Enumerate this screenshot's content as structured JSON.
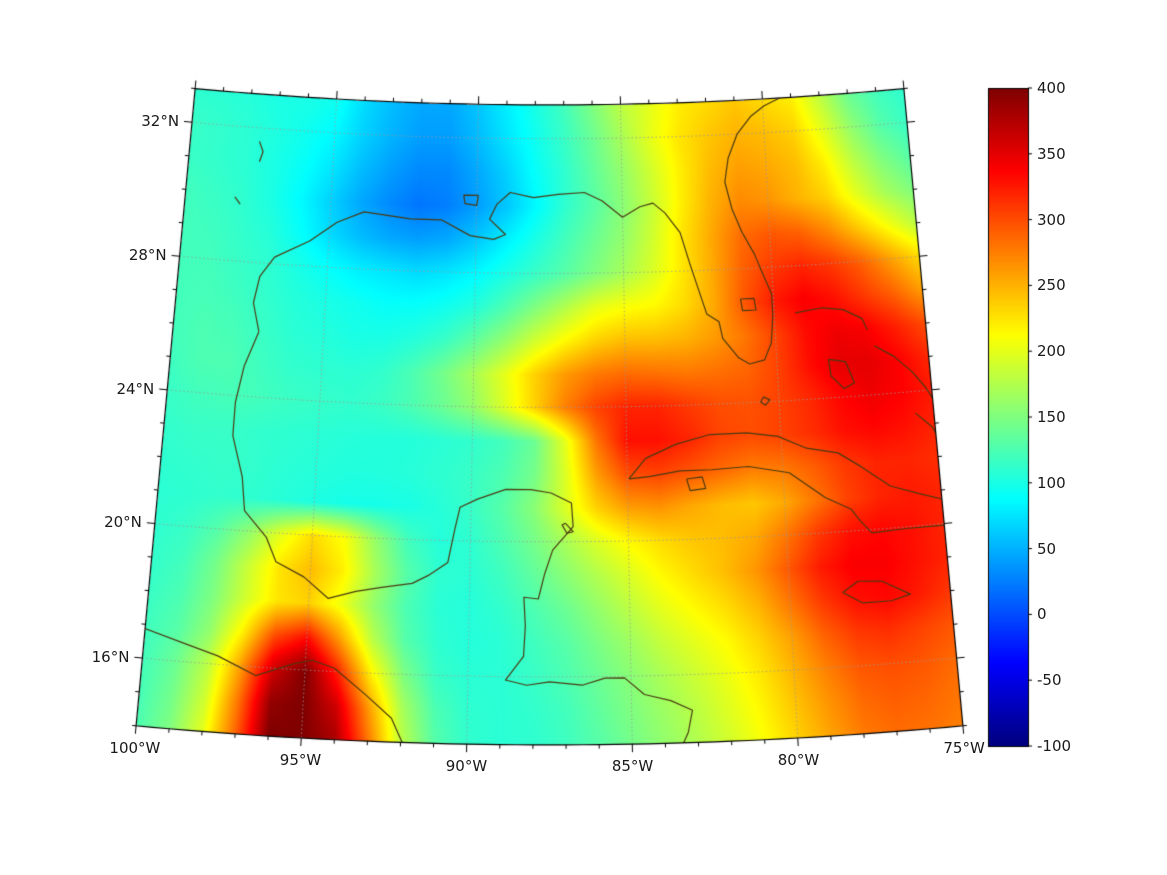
{
  "colors": {
    "background": "#ffffff",
    "coastline": "#4a3a12",
    "boundary": "#000000",
    "grid": "#999999",
    "tick_text": "#1a1a1a"
  },
  "axes": {
    "x_ticks": [
      {
        "lon": -100,
        "label": "100°W"
      },
      {
        "lon": -95,
        "label": "95°W"
      },
      {
        "lon": -90,
        "label": "90°W"
      },
      {
        "lon": -85,
        "label": "85°W"
      },
      {
        "lon": -80,
        "label": "80°W"
      },
      {
        "lon": -75,
        "label": "75°W"
      }
    ],
    "y_ticks": [
      {
        "lat": 32,
        "label": "32°N"
      },
      {
        "lat": 28,
        "label": "28°N"
      },
      {
        "lat": 24,
        "label": "24°N"
      },
      {
        "lat": 20,
        "label": "20°N"
      },
      {
        "lat": 16,
        "label": "16°N"
      }
    ]
  },
  "colorbar": {
    "ticks": [
      {
        "value": 400,
        "label": "400"
      },
      {
        "value": 350,
        "label": "350"
      },
      {
        "value": 300,
        "label": "300"
      },
      {
        "value": 250,
        "label": "250"
      },
      {
        "value": 200,
        "label": "200"
      },
      {
        "value": 150,
        "label": "150"
      },
      {
        "value": 100,
        "label": "100"
      },
      {
        "value": 50,
        "label": "50"
      },
      {
        "value": 0,
        "label": "0"
      },
      {
        "value": -50,
        "label": "-50"
      },
      {
        "value": -100,
        "label": "-100"
      }
    ]
  },
  "chart_data": {
    "type": "heatmap",
    "colormap": "jet",
    "vmin": -100,
    "vmax": 400,
    "lat_gridlines": [
      16,
      20,
      24,
      28,
      32
    ],
    "lon_gridlines": [
      -95,
      -90,
      -85,
      -80
    ],
    "lons": [
      -100,
      -99,
      -98,
      -97,
      -96,
      -95,
      -94,
      -93,
      -92,
      -91,
      -90,
      -89,
      -88,
      -87,
      -86,
      -85,
      -84,
      -83,
      -82,
      -81,
      -80,
      -79,
      -78,
      -77,
      -76,
      -75
    ],
    "lats": [
      33,
      32,
      31,
      30,
      29,
      28,
      27,
      26,
      25,
      24,
      23,
      22,
      21,
      20,
      19,
      18,
      17,
      16,
      15,
      14
    ],
    "values": [
      [
        110,
        108,
        105,
        100,
        100,
        95,
        70,
        55,
        45,
        45,
        60,
        80,
        100,
        120,
        150,
        180,
        200,
        220,
        230,
        240,
        230,
        220,
        180,
        140,
        120,
        110
      ],
      [
        115,
        112,
        108,
        102,
        95,
        85,
        65,
        50,
        40,
        40,
        55,
        75,
        95,
        115,
        140,
        170,
        200,
        225,
        240,
        250,
        245,
        235,
        200,
        160,
        130,
        115
      ],
      [
        115,
        112,
        108,
        100,
        90,
        75,
        55,
        40,
        30,
        30,
        45,
        65,
        90,
        110,
        135,
        160,
        190,
        220,
        245,
        260,
        255,
        245,
        220,
        180,
        150,
        130
      ],
      [
        120,
        115,
        110,
        100,
        85,
        65,
        45,
        30,
        20,
        25,
        40,
        60,
        85,
        110,
        130,
        155,
        185,
        220,
        250,
        270,
        265,
        250,
        235,
        200,
        170,
        150
      ],
      [
        120,
        118,
        112,
        105,
        90,
        70,
        55,
        45,
        40,
        45,
        60,
        80,
        100,
        120,
        140,
        160,
        190,
        225,
        255,
        285,
        295,
        290,
        270,
        240,
        210,
        180
      ],
      [
        120,
        120,
        115,
        110,
        100,
        90,
        80,
        75,
        70,
        75,
        85,
        100,
        115,
        130,
        150,
        170,
        195,
        225,
        255,
        290,
        310,
        320,
        310,
        290,
        260,
        230
      ],
      [
        120,
        122,
        118,
        112,
        105,
        100,
        95,
        90,
        90,
        95,
        105,
        125,
        150,
        175,
        200,
        210,
        215,
        230,
        255,
        295,
        325,
        340,
        330,
        310,
        290,
        260
      ],
      [
        120,
        125,
        122,
        115,
        108,
        105,
        100,
        100,
        105,
        115,
        135,
        160,
        190,
        215,
        235,
        245,
        245,
        250,
        262,
        280,
        305,
        332,
        345,
        340,
        322,
        300
      ],
      [
        118,
        125,
        125,
        118,
        112,
        110,
        108,
        112,
        125,
        145,
        170,
        200,
        235,
        262,
        278,
        285,
        282,
        278,
        282,
        288,
        305,
        330,
        350,
        350,
        338,
        318
      ],
      [
        115,
        120,
        122,
        120,
        116,
        114,
        112,
        116,
        125,
        140,
        160,
        195,
        235,
        275,
        305,
        320,
        320,
        310,
        300,
        298,
        305,
        318,
        335,
        345,
        338,
        325
      ],
      [
        112,
        115,
        115,
        112,
        110,
        108,
        106,
        105,
        105,
        108,
        112,
        120,
        140,
        200,
        280,
        330,
        330,
        320,
        305,
        300,
        305,
        315,
        330,
        335,
        330,
        320
      ],
      [
        110,
        112,
        114,
        112,
        108,
        106,
        104,
        104,
        106,
        110,
        115,
        125,
        145,
        195,
        260,
        300,
        305,
        295,
        285,
        275,
        278,
        292,
        310,
        320,
        320,
        315
      ],
      [
        108,
        110,
        112,
        110,
        106,
        102,
        98,
        98,
        100,
        106,
        115,
        130,
        155,
        195,
        235,
        260,
        265,
        255,
        245,
        240,
        255,
        280,
        305,
        320,
        325,
        320
      ],
      [
        110,
        115,
        130,
        160,
        200,
        230,
        210,
        160,
        120,
        105,
        110,
        125,
        145,
        170,
        195,
        215,
        230,
        240,
        245,
        255,
        280,
        310,
        330,
        335,
        330,
        320
      ],
      [
        112,
        120,
        145,
        185,
        225,
        245,
        220,
        170,
        130,
        110,
        108,
        118,
        135,
        155,
        175,
        195,
        215,
        230,
        245,
        265,
        295,
        325,
        340,
        340,
        330,
        320
      ],
      [
        115,
        125,
        150,
        190,
        225,
        235,
        205,
        160,
        125,
        108,
        105,
        112,
        125,
        140,
        160,
        180,
        200,
        215,
        230,
        250,
        280,
        310,
        330,
        335,
        325,
        310
      ],
      [
        118,
        130,
        160,
        220,
        300,
        330,
        260,
        180,
        130,
        110,
        105,
        108,
        118,
        130,
        148,
        165,
        185,
        200,
        215,
        235,
        260,
        290,
        310,
        315,
        305,
        295
      ],
      [
        120,
        140,
        180,
        260,
        360,
        400,
        320,
        220,
        150,
        115,
        108,
        108,
        115,
        125,
        140,
        155,
        172,
        188,
        205,
        225,
        250,
        275,
        295,
        300,
        295,
        285
      ],
      [
        122,
        145,
        190,
        280,
        390,
        400,
        360,
        260,
        170,
        125,
        110,
        108,
        112,
        120,
        135,
        150,
        165,
        180,
        198,
        218,
        242,
        265,
        285,
        292,
        288,
        280
      ],
      [
        125,
        150,
        200,
        290,
        400,
        400,
        380,
        280,
        180,
        130,
        112,
        108,
        110,
        118,
        130,
        145,
        160,
        175,
        192,
        212,
        235,
        258,
        278,
        285,
        282,
        275
      ]
    ],
    "coastlines": {
      "us_gulf_atlantic": [
        [
          -97.15,
          25.95
        ],
        [
          -97.4,
          26.8
        ],
        [
          -97.25,
          27.6
        ],
        [
          -96.8,
          28.2
        ],
        [
          -95.65,
          28.75
        ],
        [
          -94.75,
          29.35
        ],
        [
          -93.85,
          29.7
        ],
        [
          -92.25,
          29.55
        ],
        [
          -91.2,
          29.55
        ],
        [
          -90.2,
          29.1
        ],
        [
          -89.4,
          29.0
        ],
        [
          -89.0,
          29.15
        ],
        [
          -89.55,
          29.6
        ],
        [
          -89.3,
          30.05
        ],
        [
          -88.85,
          30.4
        ],
        [
          -88.05,
          30.25
        ],
        [
          -87.2,
          30.35
        ],
        [
          -86.3,
          30.4
        ],
        [
          -85.7,
          30.15
        ],
        [
          -85.0,
          29.65
        ],
        [
          -84.4,
          29.95
        ],
        [
          -83.95,
          30.05
        ],
        [
          -83.55,
          29.75
        ],
        [
          -83.05,
          29.15
        ],
        [
          -82.75,
          28.2
        ],
        [
          -82.65,
          27.9
        ],
        [
          -82.25,
          26.7
        ],
        [
          -81.85,
          26.45
        ],
        [
          -81.75,
          25.95
        ],
        [
          -81.25,
          25.35
        ],
        [
          -80.9,
          25.15
        ],
        [
          -80.4,
          25.25
        ],
        [
          -80.15,
          25.75
        ],
        [
          -80.05,
          26.55
        ],
        [
          -80.05,
          27.2
        ],
        [
          -80.35,
          27.9
        ],
        [
          -80.55,
          28.4
        ],
        [
          -80.95,
          29.1
        ],
        [
          -81.25,
          29.8
        ],
        [
          -81.45,
          30.6
        ],
        [
          -81.3,
          31.3
        ],
        [
          -80.95,
          32.0
        ],
        [
          -80.45,
          32.5
        ],
        [
          -79.95,
          32.8
        ],
        [
          -79.25,
          33.05
        ]
      ],
      "mexico_central_america": [
        [
          -97.15,
          25.95
        ],
        [
          -97.55,
          24.9
        ],
        [
          -97.75,
          23.8
        ],
        [
          -97.75,
          22.8
        ],
        [
          -97.35,
          21.6
        ],
        [
          -97.2,
          20.6
        ],
        [
          -96.45,
          19.85
        ],
        [
          -96.1,
          19.15
        ],
        [
          -95.2,
          18.75
        ],
        [
          -94.4,
          18.15
        ],
        [
          -93.55,
          18.4
        ],
        [
          -92.75,
          18.55
        ],
        [
          -91.8,
          18.7
        ],
        [
          -91.3,
          18.95
        ],
        [
          -90.7,
          19.35
        ],
        [
          -90.5,
          20.35
        ],
        [
          -90.35,
          21.0
        ],
        [
          -89.8,
          21.25
        ],
        [
          -88.9,
          21.55
        ],
        [
          -88.1,
          21.55
        ],
        [
          -87.45,
          21.45
        ],
        [
          -86.8,
          21.15
        ],
        [
          -86.75,
          20.45
        ],
        [
          -87.4,
          19.75
        ],
        [
          -87.65,
          19.05
        ],
        [
          -87.85,
          18.3
        ],
        [
          -88.3,
          18.35
        ],
        [
          -88.25,
          17.5
        ],
        [
          -88.3,
          16.6
        ],
        [
          -88.85,
          15.9
        ],
        [
          -88.2,
          15.75
        ],
        [
          -87.5,
          15.85
        ],
        [
          -86.5,
          15.75
        ],
        [
          -85.8,
          15.95
        ],
        [
          -85.2,
          15.95
        ],
        [
          -84.6,
          15.45
        ],
        [
          -83.8,
          15.25
        ],
        [
          -83.15,
          14.95
        ],
        [
          -83.3,
          14.3
        ],
        [
          -83.5,
          13.9
        ]
      ],
      "pacific_coast": [
        [
          -100.3,
          16.95
        ],
        [
          -98.8,
          16.55
        ],
        [
          -97.7,
          16.25
        ],
        [
          -96.5,
          15.75
        ],
        [
          -95.4,
          16.15
        ],
        [
          -94.8,
          16.3
        ],
        [
          -94.1,
          16.1
        ],
        [
          -93.1,
          15.35
        ],
        [
          -92.3,
          14.7
        ],
        [
          -91.9,
          13.9
        ]
      ],
      "cuba": [
        [
          -84.95,
          21.85
        ],
        [
          -84.4,
          22.45
        ],
        [
          -83.4,
          22.85
        ],
        [
          -82.3,
          23.1
        ],
        [
          -81.1,
          23.1
        ],
        [
          -80.1,
          22.95
        ],
        [
          -79.2,
          22.55
        ],
        [
          -78.2,
          22.35
        ],
        [
          -77.5,
          21.9
        ],
        [
          -76.6,
          21.25
        ],
        [
          -75.7,
          20.95
        ],
        [
          -74.9,
          20.7
        ],
        [
          -74.9,
          19.95
        ],
        [
          -76.2,
          19.95
        ],
        [
          -77.3,
          19.9
        ],
        [
          -77.65,
          20.3
        ],
        [
          -77.9,
          20.65
        ],
        [
          -78.7,
          21.05
        ],
        [
          -79.8,
          21.85
        ],
        [
          -81.1,
          22.1
        ],
        [
          -82.3,
          22.05
        ],
        [
          -83.3,
          22.05
        ],
        [
          -84.3,
          21.9
        ],
        [
          -84.95,
          21.85
        ]
      ],
      "isle_of_youth": [
        [
          -83.1,
          21.8
        ],
        [
          -82.6,
          21.85
        ],
        [
          -82.5,
          21.5
        ],
        [
          -83.0,
          21.45
        ],
        [
          -83.1,
          21.8
        ]
      ],
      "jamaica": [
        [
          -78.35,
          18.2
        ],
        [
          -77.85,
          18.5
        ],
        [
          -77.1,
          18.45
        ],
        [
          -76.25,
          18.0
        ],
        [
          -76.85,
          17.85
        ],
        [
          -77.75,
          17.85
        ],
        [
          -78.35,
          18.2
        ]
      ],
      "andros": [
        [
          -78.3,
          25.15
        ],
        [
          -77.75,
          25.05
        ],
        [
          -77.5,
          24.4
        ],
        [
          -77.85,
          24.25
        ],
        [
          -78.25,
          24.65
        ],
        [
          -78.3,
          25.15
        ]
      ],
      "grand_bahama_abaco": [
        [
          -79.3,
          26.6
        ],
        [
          -78.4,
          26.7
        ],
        [
          -77.7,
          26.6
        ],
        [
          -77.1,
          26.3
        ],
        [
          -76.95,
          25.95
        ]
      ],
      "eleuthera_exuma": [
        [
          -76.75,
          25.45
        ],
        [
          -76.15,
          25.1
        ],
        [
          -75.6,
          24.6
        ],
        [
          -75.2,
          24.1
        ],
        [
          -75.0,
          23.75
        ]
      ],
      "long_island_bahamas": [
        [
          -75.6,
          23.35
        ],
        [
          -75.1,
          22.9
        ],
        [
          -74.95,
          22.6
        ]
      ],
      "lake_okeechobee": [
        [
          -81.1,
          27.1
        ],
        [
          -80.65,
          27.1
        ],
        [
          -80.6,
          26.75
        ],
        [
          -81.05,
          26.75
        ],
        [
          -81.1,
          27.1
        ]
      ],
      "lake_pontchartrain": [
        [
          -90.45,
          30.3
        ],
        [
          -89.95,
          30.3
        ],
        [
          -90.0,
          30.0
        ],
        [
          -90.4,
          30.05
        ],
        [
          -90.45,
          30.3
        ]
      ],
      "cay_sal_bank": [
        [
          -80.5,
          24.15
        ],
        [
          -80.3,
          24.05
        ],
        [
          -80.45,
          23.9
        ],
        [
          -80.6,
          24.0
        ],
        [
          -80.5,
          24.15
        ]
      ],
      "cozumel": [
        [
          -87.0,
          20.55
        ],
        [
          -86.75,
          20.3
        ],
        [
          -86.95,
          20.25
        ],
        [
          -87.1,
          20.5
        ],
        [
          -87.0,
          20.55
        ]
      ],
      "texas_lake_1": [
        [
          -97.6,
          31.6
        ],
        [
          -97.45,
          31.3
        ],
        [
          -97.55,
          31.0
        ]
      ],
      "texas_lake_2": [
        [
          -98.3,
          29.9
        ],
        [
          -98.1,
          29.7
        ]
      ]
    }
  }
}
